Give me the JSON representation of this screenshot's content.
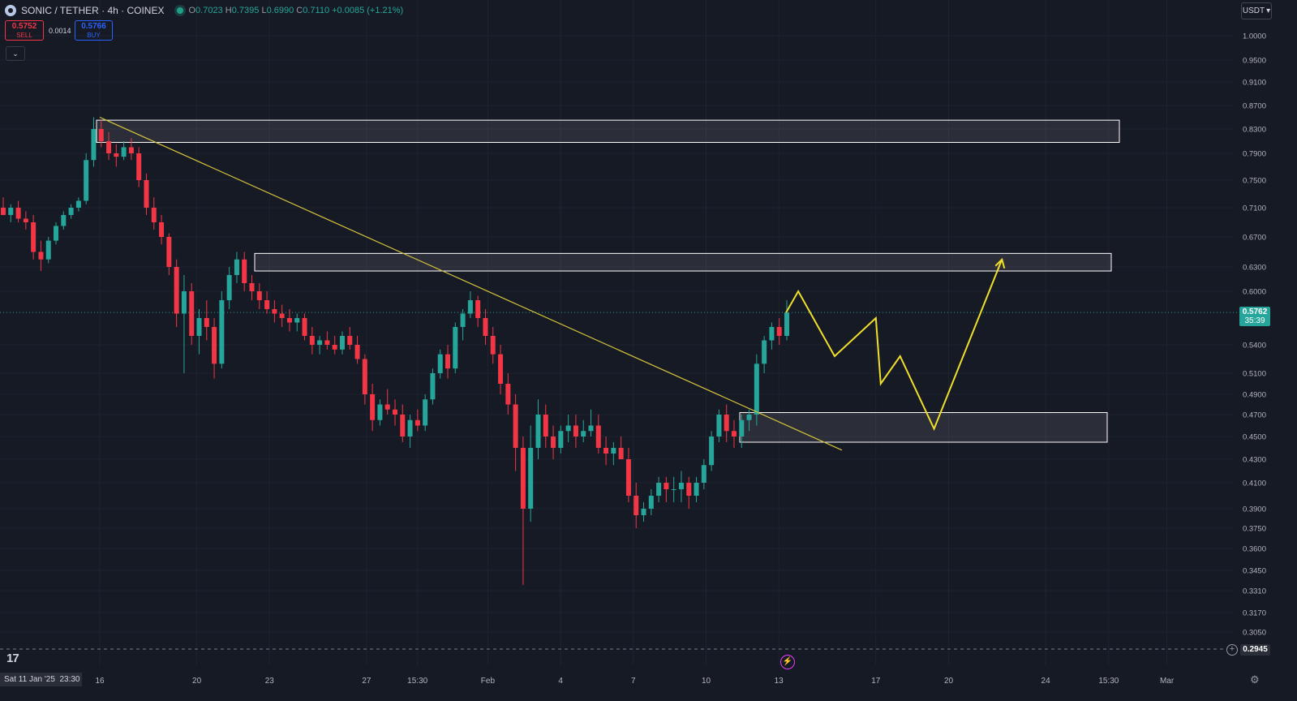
{
  "header": {
    "symbol": "SONIC / TETHER · 4h · COINEX",
    "open_label": "O",
    "open": "0.7023",
    "high_label": "H",
    "high": "0.7395",
    "low_label": "L",
    "low": "0.6990",
    "close_label": "C",
    "close": "0.7110",
    "change": "+0.0085 (+1.21%)"
  },
  "trade": {
    "sell_price": "0.5752",
    "sell_label": "SELL",
    "spread": "0.0014",
    "buy_price": "0.5766",
    "buy_label": "BUY"
  },
  "currency_button": {
    "label": "USDT",
    "icon": "chevron-down-icon"
  },
  "price_axis": {
    "current_price": "0.5762",
    "countdown": "35:39",
    "low_marker": "0.2945"
  },
  "time_axis": {
    "cursor_date": "Sat 11 Jan '25",
    "cursor_time": "23:30"
  },
  "colors": {
    "background": "#161a25",
    "up": "#26a69a",
    "down": "#f23645",
    "trendline": "#d4c23c",
    "projection": "#f0df2a",
    "zone_border": "#ffffff"
  },
  "chart_data": {
    "type": "candlestick",
    "interval": "4h",
    "title": "SONIC / TETHER · 4h · COINEX",
    "ylim": [
      0.2945,
      1.0
    ],
    "yticks": [
      "1.0000",
      "0.9500",
      "0.9100",
      "0.8700",
      "0.8300",
      "0.7900",
      "0.7500",
      "0.7100",
      "0.6700",
      "0.6300",
      "0.6000",
      "0.5400",
      "0.5100",
      "0.4900",
      "0.4700",
      "0.4500",
      "0.4300",
      "0.4100",
      "0.3900",
      "0.3750",
      "0.3600",
      "0.3450",
      "0.3310",
      "0.3170",
      "0.3050"
    ],
    "xticks": [
      {
        "label": "16",
        "day": 16
      },
      {
        "label": "20",
        "day": 20
      },
      {
        "label": "23",
        "day": 23
      },
      {
        "label": "27",
        "day": 27
      },
      {
        "label": "15:30",
        "day": 29.1
      },
      {
        "label": "Feb",
        "day": 32
      },
      {
        "label": "4",
        "day": 35
      },
      {
        "label": "7",
        "day": 38
      },
      {
        "label": "10",
        "day": 41
      },
      {
        "label": "13",
        "day": 44
      },
      {
        "label": "17",
        "day": 48
      },
      {
        "label": "20",
        "day": 51
      },
      {
        "label": "24",
        "day": 55
      },
      {
        "label": "15:30",
        "day": 57.6
      },
      {
        "label": "Mar",
        "day": 60
      }
    ],
    "series": [
      {
        "values": [
          [
            0.71,
            0.725,
            0.7,
            0.7
          ],
          [
            0.7,
            0.715,
            0.69,
            0.71
          ],
          [
            0.71,
            0.72,
            0.69,
            0.695
          ],
          [
            0.695,
            0.705,
            0.68,
            0.69
          ],
          [
            0.69,
            0.7,
            0.64,
            0.65
          ],
          [
            0.65,
            0.665,
            0.625,
            0.64
          ],
          [
            0.64,
            0.67,
            0.635,
            0.665
          ],
          [
            0.665,
            0.69,
            0.66,
            0.685
          ],
          [
            0.685,
            0.705,
            0.68,
            0.7
          ],
          [
            0.7,
            0.715,
            0.695,
            0.71
          ],
          [
            0.71,
            0.725,
            0.705,
            0.72
          ],
          [
            0.72,
            0.79,
            0.715,
            0.78
          ],
          [
            0.78,
            0.85,
            0.77,
            0.83
          ],
          [
            0.83,
            0.845,
            0.8,
            0.81
          ],
          [
            0.81,
            0.825,
            0.78,
            0.79
          ],
          [
            0.79,
            0.805,
            0.77,
            0.785
          ],
          [
            0.785,
            0.81,
            0.78,
            0.8
          ],
          [
            0.8,
            0.815,
            0.78,
            0.79
          ],
          [
            0.79,
            0.8,
            0.74,
            0.75
          ],
          [
            0.75,
            0.76,
            0.7,
            0.71
          ],
          [
            0.71,
            0.725,
            0.68,
            0.69
          ],
          [
            0.69,
            0.7,
            0.66,
            0.67
          ],
          [
            0.67,
            0.675,
            0.62,
            0.63
          ],
          [
            0.63,
            0.64,
            0.56,
            0.575
          ],
          [
            0.575,
            0.62,
            0.51,
            0.6
          ],
          [
            0.6,
            0.61,
            0.54,
            0.55
          ],
          [
            0.55,
            0.58,
            0.53,
            0.57
          ],
          [
            0.57,
            0.59,
            0.545,
            0.56
          ],
          [
            0.56,
            0.57,
            0.505,
            0.52
          ],
          [
            0.52,
            0.6,
            0.515,
            0.59
          ],
          [
            0.59,
            0.63,
            0.58,
            0.62
          ],
          [
            0.62,
            0.65,
            0.61,
            0.64
          ],
          [
            0.64,
            0.65,
            0.6,
            0.61
          ],
          [
            0.61,
            0.62,
            0.59,
            0.6
          ],
          [
            0.6,
            0.61,
            0.58,
            0.59
          ],
          [
            0.59,
            0.6,
            0.575,
            0.58
          ],
          [
            0.58,
            0.59,
            0.565,
            0.575
          ],
          [
            0.575,
            0.585,
            0.56,
            0.57
          ],
          [
            0.57,
            0.58,
            0.555,
            0.565
          ],
          [
            0.565,
            0.575,
            0.555,
            0.57
          ],
          [
            0.57,
            0.575,
            0.545,
            0.55
          ],
          [
            0.55,
            0.56,
            0.53,
            0.54
          ],
          [
            0.54,
            0.55,
            0.53,
            0.545
          ],
          [
            0.545,
            0.555,
            0.535,
            0.54
          ],
          [
            0.54,
            0.55,
            0.53,
            0.535
          ],
          [
            0.535,
            0.555,
            0.53,
            0.55
          ],
          [
            0.55,
            0.56,
            0.535,
            0.54
          ],
          [
            0.54,
            0.55,
            0.52,
            0.525
          ],
          [
            0.525,
            0.53,
            0.48,
            0.49
          ],
          [
            0.49,
            0.5,
            0.455,
            0.465
          ],
          [
            0.465,
            0.485,
            0.46,
            0.48
          ],
          [
            0.48,
            0.495,
            0.47,
            0.475
          ],
          [
            0.475,
            0.485,
            0.46,
            0.47
          ],
          [
            0.47,
            0.48,
            0.445,
            0.45
          ],
          [
            0.45,
            0.47,
            0.44,
            0.465
          ],
          [
            0.465,
            0.475,
            0.455,
            0.46
          ],
          [
            0.46,
            0.49,
            0.455,
            0.485
          ],
          [
            0.485,
            0.515,
            0.48,
            0.51
          ],
          [
            0.51,
            0.535,
            0.505,
            0.53
          ],
          [
            0.53,
            0.54,
            0.505,
            0.515
          ],
          [
            0.515,
            0.565,
            0.51,
            0.56
          ],
          [
            0.56,
            0.58,
            0.545,
            0.575
          ],
          [
            0.575,
            0.6,
            0.57,
            0.59
          ],
          [
            0.59,
            0.595,
            0.56,
            0.57
          ],
          [
            0.57,
            0.58,
            0.54,
            0.55
          ],
          [
            0.55,
            0.56,
            0.52,
            0.53
          ],
          [
            0.53,
            0.54,
            0.49,
            0.5
          ],
          [
            0.5,
            0.51,
            0.47,
            0.48
          ],
          [
            0.48,
            0.49,
            0.42,
            0.44
          ],
          [
            0.44,
            0.45,
            0.335,
            0.39
          ],
          [
            0.39,
            0.46,
            0.38,
            0.44
          ],
          [
            0.44,
            0.485,
            0.43,
            0.47
          ],
          [
            0.47,
            0.48,
            0.44,
            0.45
          ],
          [
            0.45,
            0.46,
            0.43,
            0.44
          ],
          [
            0.44,
            0.46,
            0.435,
            0.455
          ],
          [
            0.455,
            0.47,
            0.445,
            0.46
          ],
          [
            0.46,
            0.47,
            0.44,
            0.45
          ],
          [
            0.45,
            0.465,
            0.445,
            0.455
          ],
          [
            0.455,
            0.475,
            0.45,
            0.46
          ],
          [
            0.46,
            0.47,
            0.435,
            0.44
          ],
          [
            0.44,
            0.45,
            0.425,
            0.435
          ],
          [
            0.435,
            0.445,
            0.425,
            0.44
          ],
          [
            0.44,
            0.45,
            0.43,
            0.43
          ],
          [
            0.43,
            0.44,
            0.395,
            0.4
          ],
          [
            0.4,
            0.41,
            0.375,
            0.385
          ],
          [
            0.385,
            0.395,
            0.38,
            0.39
          ],
          [
            0.39,
            0.405,
            0.385,
            0.4
          ],
          [
            0.4,
            0.415,
            0.395,
            0.41
          ],
          [
            0.41,
            0.415,
            0.395,
            0.405
          ],
          [
            0.405,
            0.415,
            0.395,
            0.405
          ],
          [
            0.405,
            0.42,
            0.395,
            0.41
          ],
          [
            0.41,
            0.415,
            0.39,
            0.4
          ],
          [
            0.4,
            0.415,
            0.395,
            0.41
          ],
          [
            0.41,
            0.43,
            0.405,
            0.425
          ],
          [
            0.425,
            0.455,
            0.42,
            0.45
          ],
          [
            0.45,
            0.475,
            0.445,
            0.47
          ],
          [
            0.47,
            0.48,
            0.445,
            0.455
          ],
          [
            0.455,
            0.465,
            0.44,
            0.45
          ],
          [
            0.45,
            0.47,
            0.44,
            0.465
          ],
          [
            0.465,
            0.475,
            0.455,
            0.47
          ],
          [
            0.47,
            0.53,
            0.46,
            0.52
          ],
          [
            0.52,
            0.55,
            0.51,
            0.545
          ],
          [
            0.545,
            0.565,
            0.535,
            0.56
          ],
          [
            0.56,
            0.57,
            0.54,
            0.55
          ],
          [
            0.55,
            0.59,
            0.545,
            0.5762
          ]
        ]
      }
    ],
    "zones": [
      {
        "y_top": 0.845,
        "y_bottom": 0.808
      },
      {
        "y_top": 0.648,
        "y_bottom": 0.625
      },
      {
        "y_top": 0.472,
        "y_bottom": 0.445
      }
    ],
    "trendline": [
      {
        "day": 16.0,
        "price": 0.85
      },
      {
        "day": 46.6,
        "price": 0.438
      }
    ],
    "projection_path": [
      {
        "day": 44.3,
        "price": 0.5762
      },
      {
        "day": 44.8,
        "price": 0.6
      },
      {
        "day": 46.3,
        "price": 0.528
      },
      {
        "day": 48.0,
        "price": 0.57
      },
      {
        "day": 48.2,
        "price": 0.5
      },
      {
        "day": 49.0,
        "price": 0.528
      },
      {
        "day": 50.4,
        "price": 0.457
      },
      {
        "day": 53.2,
        "price": 0.64
      }
    ]
  }
}
